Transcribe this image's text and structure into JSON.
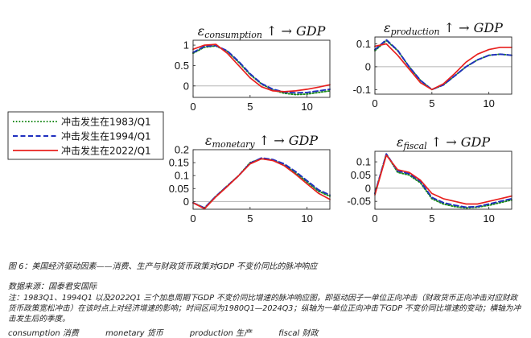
{
  "chart_data": {
    "type": "line",
    "legend": {
      "placement": "left",
      "entries": [
        {
          "name": "冲击发生在1983/Q1",
          "color": "#1a8a1a",
          "dash": "dotted"
        },
        {
          "name": "冲击发生在1994/Q1",
          "color": "#1f2fbf",
          "dash": "dashed"
        },
        {
          "name": "冲击发生在2022/Q1",
          "color": "#e8201e",
          "dash": "solid"
        }
      ]
    },
    "panels": [
      {
        "id": "consumption",
        "title": {
          "eps": "ε",
          "sub": "consumption",
          "tail": " ↑ → GDP"
        },
        "xlim": [
          0,
          12
        ],
        "ylim": [
          -0.28,
          1.12
        ],
        "xticks": [
          0,
          5,
          10
        ],
        "yticks": [
          0,
          0.5,
          1
        ],
        "ytick_labels": [
          "0",
          "0.5",
          "1"
        ],
        "zero_line": true,
        "series": [
          {
            "name": "冲击发生在1983/Q1",
            "x": [
              0,
              1,
              2,
              3,
              4,
              5,
              6,
              7,
              8,
              9,
              10,
              11,
              12
            ],
            "y": [
              0.8,
              0.95,
              0.98,
              0.85,
              0.58,
              0.28,
              0.05,
              -0.1,
              -0.18,
              -0.21,
              -0.2,
              -0.16,
              -0.12
            ]
          },
          {
            "name": "冲击发生在1994/Q1",
            "x": [
              0,
              1,
              2,
              3,
              4,
              5,
              6,
              7,
              8,
              9,
              10,
              11,
              12
            ],
            "y": [
              0.82,
              0.97,
              0.99,
              0.86,
              0.6,
              0.3,
              0.06,
              -0.08,
              -0.15,
              -0.17,
              -0.16,
              -0.12,
              -0.08
            ]
          },
          {
            "name": "冲击发生在2022/Q1",
            "x": [
              0,
              1,
              2,
              3,
              4,
              5,
              6,
              7,
              8,
              9,
              10,
              11,
              12
            ],
            "y": [
              0.9,
              1.0,
              1.02,
              0.8,
              0.5,
              0.2,
              -0.02,
              -0.12,
              -0.14,
              -0.12,
              -0.08,
              -0.03,
              0.03
            ]
          }
        ]
      },
      {
        "id": "production",
        "title": {
          "eps": "ε",
          "sub": "production",
          "tail": " ↑ → GDP"
        },
        "xlim": [
          0,
          12
        ],
        "ylim": [
          -0.12,
          0.13
        ],
        "xticks": [
          0,
          5,
          10
        ],
        "yticks": [
          -0.1,
          0,
          0.1
        ],
        "ytick_labels": [
          "-0.1",
          "0",
          "0.1"
        ],
        "zero_line": true,
        "series": [
          {
            "name": "冲击发生在1983/Q1",
            "x": [
              0,
              1,
              2,
              3,
              4,
              5,
              6,
              7,
              8,
              9,
              10,
              11,
              12
            ],
            "y": [
              0.07,
              0.115,
              0.07,
              0.0,
              -0.06,
              -0.1,
              -0.08,
              -0.04,
              0.0,
              0.03,
              0.05,
              0.055,
              0.05
            ]
          },
          {
            "name": "冲击发生在1994/Q1",
            "x": [
              0,
              1,
              2,
              3,
              4,
              5,
              6,
              7,
              8,
              9,
              10,
              11,
              12
            ],
            "y": [
              0.075,
              0.118,
              0.072,
              0.0,
              -0.06,
              -0.1,
              -0.08,
              -0.04,
              0.0,
              0.03,
              0.05,
              0.055,
              0.05
            ]
          },
          {
            "name": "冲击发生在2022/Q1",
            "x": [
              0,
              1,
              2,
              3,
              4,
              5,
              6,
              7,
              8,
              9,
              10,
              11,
              12
            ],
            "y": [
              0.09,
              0.1,
              0.05,
              -0.01,
              -0.07,
              -0.1,
              -0.075,
              -0.03,
              0.02,
              0.055,
              0.075,
              0.085,
              0.085
            ]
          }
        ]
      },
      {
        "id": "monetary",
        "title": {
          "eps": "ε",
          "sub": "monetary",
          "tail": " ↑ → GDP"
        },
        "xlim": [
          0,
          12
        ],
        "ylim": [
          -0.03,
          0.2
        ],
        "xticks": [
          0,
          5,
          10
        ],
        "yticks": [
          0,
          0.05,
          0.1,
          0.15,
          0.2
        ],
        "ytick_labels": [
          "0",
          "0.05",
          "0.1",
          "0.15",
          "0.2"
        ],
        "zero_line": true,
        "series": [
          {
            "name": "冲击发生在1983/Q1",
            "x": [
              0,
              1,
              2,
              3,
              4,
              5,
              6,
              7,
              8,
              9,
              10,
              11,
              12
            ],
            "y": [
              -0.005,
              -0.025,
              0.02,
              0.06,
              0.1,
              0.15,
              0.165,
              0.16,
              0.14,
              0.11,
              0.075,
              0.04,
              0.02
            ]
          },
          {
            "name": "冲击发生在1994/Q1",
            "x": [
              0,
              1,
              2,
              3,
              4,
              5,
              6,
              7,
              8,
              9,
              10,
              11,
              12
            ],
            "y": [
              -0.005,
              -0.025,
              0.02,
              0.06,
              0.1,
              0.148,
              0.168,
              0.162,
              0.145,
              0.115,
              0.08,
              0.045,
              0.025
            ]
          },
          {
            "name": "冲击发生在2022/Q1",
            "x": [
              0,
              1,
              2,
              3,
              4,
              5,
              6,
              7,
              8,
              9,
              10,
              11,
              12
            ],
            "y": [
              -0.005,
              -0.028,
              0.018,
              0.058,
              0.1,
              0.145,
              0.165,
              0.158,
              0.138,
              0.105,
              0.068,
              0.032,
              0.008
            ]
          }
        ]
      },
      {
        "id": "fiscal",
        "title": {
          "eps": "ε",
          "sub": "fiscal",
          "tail": " ↑ → GDP"
        },
        "xlim": [
          0,
          12
        ],
        "ylim": [
          -0.08,
          0.14
        ],
        "xticks": [
          0,
          5,
          10
        ],
        "yticks": [
          -0.05,
          0,
          0.05,
          0.1
        ],
        "ytick_labels": [
          "-0.05",
          "0",
          "0.05",
          "0.1"
        ],
        "zero_line": true,
        "series": [
          {
            "name": "冲击发生在1983/Q1",
            "x": [
              0,
              1,
              2,
              3,
              4,
              5,
              6,
              7,
              8,
              9,
              10,
              11,
              12
            ],
            "y": [
              -0.02,
              0.13,
              0.06,
              0.05,
              0.02,
              -0.04,
              -0.06,
              -0.07,
              -0.075,
              -0.072,
              -0.065,
              -0.055,
              -0.045
            ]
          },
          {
            "name": "冲击发生在1994/Q1",
            "x": [
              0,
              1,
              2,
              3,
              4,
              5,
              6,
              7,
              8,
              9,
              10,
              11,
              12
            ],
            "y": [
              -0.02,
              0.13,
              0.065,
              0.055,
              0.025,
              -0.035,
              -0.055,
              -0.065,
              -0.072,
              -0.07,
              -0.06,
              -0.05,
              -0.04
            ]
          },
          {
            "name": "冲击发生在2022/Q1",
            "x": [
              0,
              1,
              2,
              3,
              4,
              5,
              6,
              7,
              8,
              9,
              10,
              11,
              12
            ],
            "y": [
              -0.025,
              0.125,
              0.07,
              0.06,
              0.03,
              -0.02,
              -0.04,
              -0.05,
              -0.06,
              -0.06,
              -0.05,
              -0.04,
              -0.03
            ]
          }
        ]
      }
    ]
  },
  "caption": {
    "title": "图 6：美国经济驱动因素——消费、生产与财政货币政策对GDP 不变价同比的脉冲响应",
    "source": "数据来源：国泰君安国际",
    "note": "注：1983Q1、1994Q1 以及2022Q1 三个加息周期下GDP 不变价同比增速的脉冲响应图，即驱动因子一单位正向冲击（财政货币正向冲击对应财政货币政策宽松冲击）在该时点上对经济增速的影响；时间区间为1980Q1—2024Q3；纵轴为一单位正向冲击下GDP 不变价同比增速的变动；横轴为冲击发生后的季度。",
    "glossary": [
      "consumption 消费",
      "monetary 货币",
      "production 生产",
      "fiscal 财政"
    ]
  }
}
